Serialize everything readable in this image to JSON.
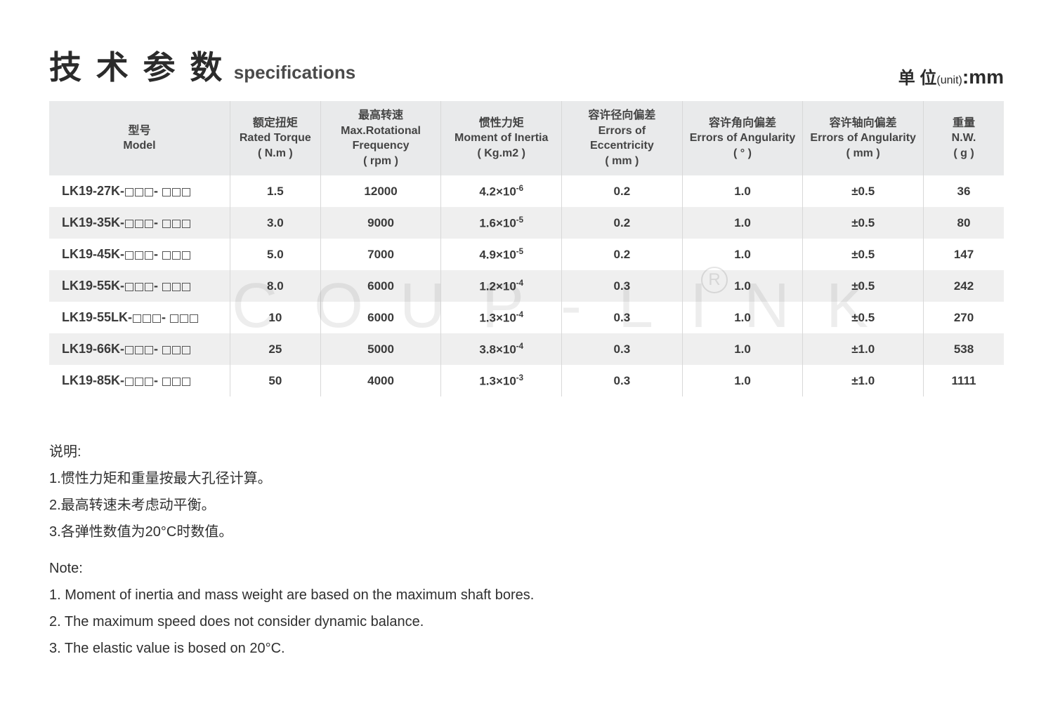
{
  "header": {
    "title_cn": "技 术 参 数",
    "title_en": "specifications",
    "unit_cn": "单 位",
    "unit_sub": "(unit)",
    "unit_val": ":mm"
  },
  "columns": [
    {
      "cn": "型号",
      "en": "Model",
      "unit": ""
    },
    {
      "cn": "额定扭矩",
      "en": "Rated Torque",
      "unit": "( N.m )"
    },
    {
      "cn": "最高转速",
      "en": "Max.Rotational Frequency",
      "unit": "( rpm )"
    },
    {
      "cn": "惯性力矩",
      "en": "Moment of Inertia",
      "unit": "( Kg.m2 )"
    },
    {
      "cn": "容许径向偏差",
      "en": "Errors of Eccentricity",
      "unit": "( mm )"
    },
    {
      "cn": "容许角向偏差",
      "en": "Errors of Angularity",
      "unit": "( ° )"
    },
    {
      "cn": "容许轴向偏差",
      "en": "Errors of Angularity",
      "unit": "( mm )"
    },
    {
      "cn": "重量",
      "en": "N.W.",
      "unit": "( g )"
    }
  ],
  "rows": [
    {
      "model": "LK19-27K",
      "torque": "1.5",
      "rpm": "12000",
      "inertia_b": "4.2",
      "inertia_e": "-6",
      "ecc": "0.2",
      "ang": "1.0",
      "ax": "±0.5",
      "wt": "36"
    },
    {
      "model": "LK19-35K",
      "torque": "3.0",
      "rpm": "9000",
      "inertia_b": "1.6",
      "inertia_e": "-5",
      "ecc": "0.2",
      "ang": "1.0",
      "ax": "±0.5",
      "wt": "80"
    },
    {
      "model": "LK19-45K",
      "torque": "5.0",
      "rpm": "7000",
      "inertia_b": "4.9",
      "inertia_e": "-5",
      "ecc": "0.2",
      "ang": "1.0",
      "ax": "±0.5",
      "wt": "147"
    },
    {
      "model": "LK19-55K",
      "torque": "8.0",
      "rpm": "6000",
      "inertia_b": "1.2",
      "inertia_e": "-4",
      "ecc": "0.3",
      "ang": "1.0",
      "ax": "±0.5",
      "wt": "242"
    },
    {
      "model": "LK19-55LK",
      "torque": "10",
      "rpm": "6000",
      "inertia_b": "1.3",
      "inertia_e": "-4",
      "ecc": "0.3",
      "ang": "1.0",
      "ax": "±0.5",
      "wt": "270"
    },
    {
      "model": "LK19-66K",
      "torque": "25",
      "rpm": "5000",
      "inertia_b": "3.8",
      "inertia_e": "-4",
      "ecc": "0.3",
      "ang": "1.0",
      "ax": "±1.0",
      "wt": "538"
    },
    {
      "model": "LK19-85K",
      "torque": "50",
      "rpm": "4000",
      "inertia_b": "1.3",
      "inertia_e": "-3",
      "ecc": "0.3",
      "ang": "1.0",
      "ax": "±1.0",
      "wt": "1111"
    }
  ],
  "notes": {
    "cn_head": "说明:",
    "cn": [
      "1.惯性力矩和重量按最大孔径计算。",
      "2.最高转速未考虑动平衡。",
      "3.各弹性数值为20°C时数值。"
    ],
    "en_head": "Note:",
    "en": [
      "1. Moment of inertia and mass weight are based on the maximum shaft bores.",
      "2. The maximum speed does not consider dynamic balance.",
      "3. The elastic value is bosed on 20°C."
    ]
  },
  "watermark": "COUP-LINK"
}
